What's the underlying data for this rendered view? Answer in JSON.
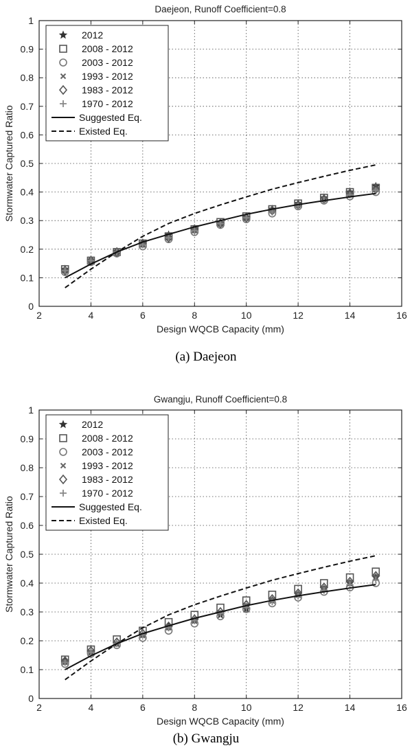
{
  "chart_data": [
    {
      "type": "scatter",
      "title": "Daejeon, Runoff Coefficient=0.8",
      "caption": "(a)  Daejeon",
      "xlabel": "Design WQCB Capacity (mm)",
      "ylabel": "Stormwater Captured Ratio",
      "xlim": [
        2,
        16
      ],
      "ylim": [
        0,
        1
      ],
      "xticks": [
        "2",
        "4",
        "6",
        "8",
        "10",
        "12",
        "14",
        "16"
      ],
      "yticks": [
        "0",
        "0.1",
        "0.2",
        "0.3",
        "0.4",
        "0.5",
        "0.6",
        "0.7",
        "0.8",
        "0.9",
        "1"
      ],
      "grid": true,
      "legend_position": "top-left",
      "x": [
        3,
        4,
        5,
        6,
        7,
        8,
        9,
        10,
        11,
        12,
        13,
        14,
        15
      ],
      "series": [
        {
          "name": "2012",
          "marker": "star",
          "color": "#333333",
          "values": [
            0.13,
            0.16,
            0.19,
            0.22,
            0.25,
            0.27,
            0.29,
            0.31,
            0.34,
            0.36,
            0.38,
            0.4,
            0.42
          ]
        },
        {
          "name": "2008 - 2012",
          "marker": "square",
          "color": "#555555",
          "values": [
            0.13,
            0.16,
            0.19,
            0.22,
            0.245,
            0.27,
            0.295,
            0.315,
            0.34,
            0.36,
            0.38,
            0.4,
            0.415
          ]
        },
        {
          "name": "2003 - 2012",
          "marker": "circle",
          "color": "#777777",
          "values": [
            0.12,
            0.155,
            0.185,
            0.21,
            0.235,
            0.26,
            0.285,
            0.305,
            0.325,
            0.35,
            0.37,
            0.385,
            0.4
          ]
        },
        {
          "name": "1993 - 2012",
          "marker": "x",
          "color": "#666666",
          "values": [
            0.125,
            0.16,
            0.19,
            0.215,
            0.24,
            0.265,
            0.29,
            0.31,
            0.335,
            0.355,
            0.375,
            0.39,
            0.41
          ]
        },
        {
          "name": "1983 - 2012",
          "marker": "diamond",
          "color": "#555555",
          "values": [
            0.125,
            0.16,
            0.19,
            0.22,
            0.24,
            0.27,
            0.29,
            0.31,
            0.335,
            0.355,
            0.375,
            0.395,
            0.41
          ]
        },
        {
          "name": "1970 - 2012",
          "marker": "plus",
          "color": "#888888",
          "values": [
            0.125,
            0.16,
            0.19,
            0.215,
            0.24,
            0.265,
            0.29,
            0.31,
            0.33,
            0.35,
            0.37,
            0.39,
            0.405
          ]
        },
        {
          "name": "Suggested Eq.",
          "line": "solid",
          "color": "#111111",
          "x": [
            3,
            4,
            5,
            6,
            7,
            8,
            9,
            10,
            11,
            12,
            13,
            14,
            15
          ],
          "values": [
            0.1,
            0.148,
            0.19,
            0.225,
            0.252,
            0.278,
            0.3,
            0.322,
            0.34,
            0.356,
            0.37,
            0.383,
            0.395
          ]
        },
        {
          "name": "Existed Eq.",
          "line": "dashed",
          "color": "#111111",
          "x": [
            3,
            4,
            5,
            6,
            7,
            8,
            9,
            10,
            11,
            12,
            13,
            14,
            15
          ],
          "values": [
            0.065,
            0.13,
            0.19,
            0.245,
            0.29,
            0.325,
            0.355,
            0.383,
            0.41,
            0.433,
            0.455,
            0.476,
            0.495
          ]
        }
      ]
    },
    {
      "type": "scatter",
      "title": "Gwangju, Runoff Coefficient=0.8",
      "caption": "(b)  Gwangju",
      "xlabel": "Design WQCB Capacity (mm)",
      "ylabel": "Stormwater Captured Ratio",
      "xlim": [
        2,
        16
      ],
      "ylim": [
        0,
        1
      ],
      "xticks": [
        "2",
        "4",
        "6",
        "8",
        "10",
        "12",
        "14",
        "16"
      ],
      "yticks": [
        "0",
        "0.1",
        "0.2",
        "0.3",
        "0.4",
        "0.5",
        "0.6",
        "0.7",
        "0.8",
        "0.9",
        "1"
      ],
      "grid": true,
      "legend_position": "top-left",
      "x": [
        3,
        4,
        5,
        6,
        7,
        8,
        9,
        10,
        11,
        12,
        13,
        14,
        15
      ],
      "series": [
        {
          "name": "2012",
          "marker": "star",
          "color": "#333333",
          "values": [
            0.13,
            0.16,
            0.19,
            0.22,
            0.25,
            0.27,
            0.29,
            0.31,
            0.34,
            0.36,
            0.38,
            0.4,
            0.42
          ]
        },
        {
          "name": "2008 - 2012",
          "marker": "square",
          "color": "#555555",
          "values": [
            0.135,
            0.17,
            0.205,
            0.235,
            0.265,
            0.29,
            0.315,
            0.34,
            0.36,
            0.38,
            0.4,
            0.42,
            0.44
          ]
        },
        {
          "name": "2003 - 2012",
          "marker": "circle",
          "color": "#777777",
          "values": [
            0.12,
            0.155,
            0.185,
            0.21,
            0.235,
            0.26,
            0.285,
            0.31,
            0.33,
            0.35,
            0.37,
            0.385,
            0.4
          ]
        },
        {
          "name": "1993 - 2012",
          "marker": "x",
          "color": "#666666",
          "values": [
            0.125,
            0.16,
            0.19,
            0.22,
            0.245,
            0.27,
            0.295,
            0.32,
            0.34,
            0.36,
            0.38,
            0.4,
            0.42
          ]
        },
        {
          "name": "1983 - 2012",
          "marker": "diamond",
          "color": "#555555",
          "values": [
            0.13,
            0.165,
            0.195,
            0.225,
            0.25,
            0.275,
            0.3,
            0.325,
            0.345,
            0.365,
            0.385,
            0.405,
            0.425
          ]
        },
        {
          "name": "1970 - 2012",
          "marker": "plus",
          "color": "#888888",
          "values": [
            0.125,
            0.16,
            0.19,
            0.22,
            0.245,
            0.27,
            0.295,
            0.315,
            0.335,
            0.355,
            0.375,
            0.395,
            0.41
          ]
        },
        {
          "name": "Suggested Eq.",
          "line": "solid",
          "color": "#111111",
          "x": [
            3,
            4,
            5,
            6,
            7,
            8,
            9,
            10,
            11,
            12,
            13,
            14,
            15
          ],
          "values": [
            0.1,
            0.148,
            0.19,
            0.225,
            0.252,
            0.278,
            0.3,
            0.322,
            0.34,
            0.356,
            0.37,
            0.383,
            0.395
          ]
        },
        {
          "name": "Existed Eq.",
          "line": "dashed",
          "color": "#111111",
          "x": [
            3,
            4,
            5,
            6,
            7,
            8,
            9,
            10,
            11,
            12,
            13,
            14,
            15
          ],
          "values": [
            0.065,
            0.13,
            0.19,
            0.245,
            0.29,
            0.325,
            0.355,
            0.383,
            0.41,
            0.433,
            0.455,
            0.476,
            0.495
          ]
        }
      ]
    }
  ]
}
